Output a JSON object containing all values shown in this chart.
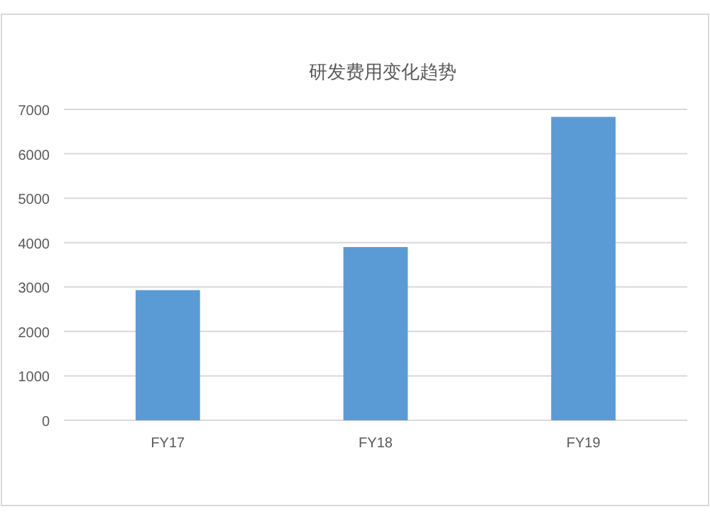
{
  "chart_data": {
    "type": "bar",
    "title": "研发费用变化趋势",
    "categories": [
      "FY17",
      "FY18",
      "FY19"
    ],
    "series": [
      {
        "color": "#5b9bd5",
        "values": [
          2930,
          3900,
          6830
        ]
      }
    ],
    "ylim": [
      0,
      7000
    ],
    "yticks": [
      0,
      1000,
      2000,
      3000,
      4000,
      5000,
      6000,
      7000
    ],
    "grid": "y"
  }
}
